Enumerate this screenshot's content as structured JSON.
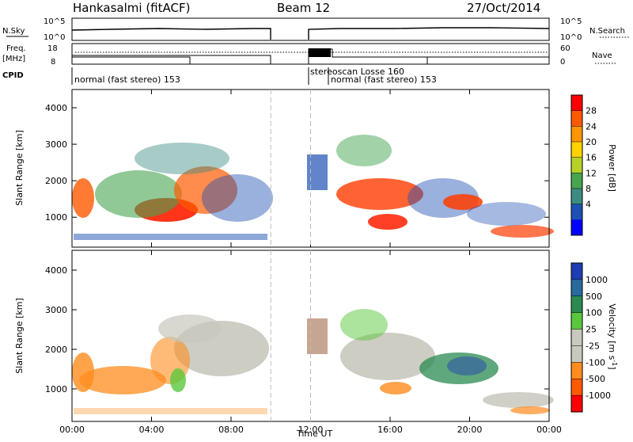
{
  "header": {
    "station": "Hankasalmi (fitACF)",
    "beam": "Beam 12",
    "date": "27/Oct/2014"
  },
  "nsky_panel": {
    "left_label": "N.Sky",
    "right_label": "N.Search",
    "ticks_left": [
      "10^5",
      "10^0"
    ],
    "ticks_right": [
      "10^5",
      "10^0"
    ]
  },
  "freq_panel": {
    "left_label_1": "Freq.",
    "left_label_2": "[MHz]",
    "right_label": "Nave",
    "ticks_left": [
      "18",
      "8"
    ],
    "ticks_right": [
      "60",
      "0"
    ]
  },
  "cpid_panel": {
    "label": "CPID",
    "modes": [
      {
        "label": "normal (fast stereo) 153",
        "start": 0,
        "end": 12
      },
      {
        "label": "stereoscan Losse 160",
        "start": 12,
        "end": 13
      },
      {
        "label": "normal (fast stereo) 153",
        "start": 13,
        "end": 24
      }
    ]
  },
  "chart_data": [
    {
      "type": "heatmap",
      "name": "power",
      "ylabel": "Slant Range [km]",
      "ylim": [
        180,
        4500
      ],
      "xlim": [
        0,
        24
      ],
      "yticks": [
        1000,
        2000,
        3000,
        4000
      ],
      "colorbar_label": "Power [dB]",
      "colorbar_ticks": [
        "28",
        "24",
        "20",
        "16",
        "12",
        "8",
        "4"
      ],
      "colorbar_colors": [
        "#ff0000",
        "#ff5a00",
        "#ff9600",
        "#ffd200",
        "#b4d228",
        "#46a550",
        "#3c8c82",
        "#1e50b4",
        "#0000ff"
      ],
      "data_gaps_ut": [
        [
          10,
          12
        ]
      ]
    },
    {
      "type": "heatmap",
      "name": "velocity",
      "ylabel": "Slant Range [km]",
      "xlabel": "Time UT",
      "ylim": [
        180,
        4500
      ],
      "xlim": [
        0,
        24
      ],
      "yticks": [
        1000,
        2000,
        3000,
        4000
      ],
      "xticks": [
        "00:00",
        "04:00",
        "08:00",
        "12:00",
        "16:00",
        "20:00",
        "00:00"
      ],
      "colorbar_label": "Velocity [m s",
      "colorbar_label_sup": "-1",
      "colorbar_label_end": "]",
      "colorbar_ticks": [
        "1000",
        "500",
        "100",
        "25",
        "-25",
        "-100",
        "-500",
        "-1000"
      ],
      "colorbar_colors": [
        "#1e3cb4",
        "#2a6a9e",
        "#2a8a50",
        "#5ac83c",
        "#c8c8be",
        "#c8c8be",
        "#ff8c1e",
        "#ff5a00",
        "#ff0000"
      ],
      "data_gaps_ut": [
        [
          10,
          12
        ]
      ]
    }
  ]
}
